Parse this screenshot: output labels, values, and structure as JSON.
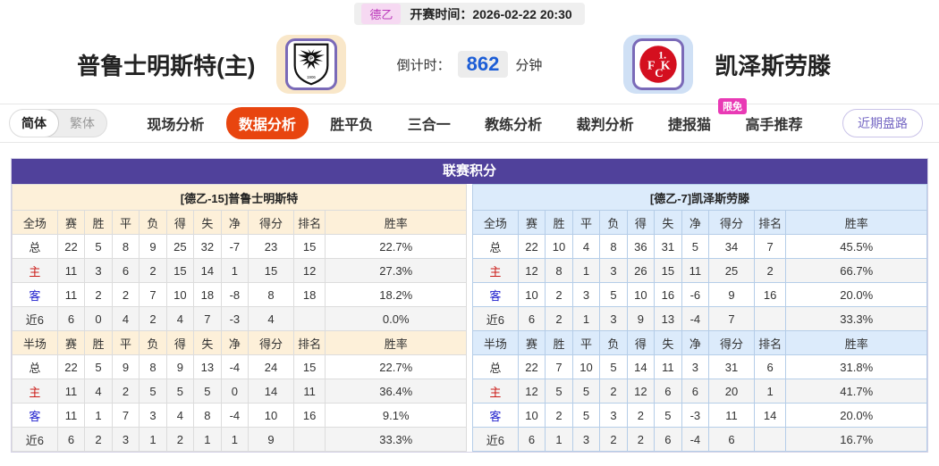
{
  "top_bar": {
    "league": "德乙",
    "kickoff_label": "开赛时间：",
    "kickoff_time": "2026-02-22 20:30"
  },
  "header": {
    "home_team": "普鲁士明斯特(主)",
    "away_team": "凯泽斯劳滕",
    "home_logo": "preussen-muenster-crest",
    "away_logo": "kaiserslautern-fck-crest",
    "countdown_label": "倒计时：",
    "countdown_value": "862",
    "countdown_unit": "分钟"
  },
  "tabs": {
    "lang_simplified": "简体",
    "lang_traditional": "繁体",
    "items": [
      "现场分析",
      "数据分析",
      "胜平负",
      "三合一",
      "教练分析",
      "裁判分析",
      "捷报猫",
      "高手推荐"
    ],
    "active": "数据分析",
    "badge_on": "捷报猫",
    "badge_label": "限免",
    "right_button": "近期盘路"
  },
  "league_table": {
    "title": "联赛积分",
    "columns_full": [
      "全场",
      "赛",
      "胜",
      "平",
      "负",
      "得",
      "失",
      "净",
      "得分",
      "排名",
      "胜率"
    ],
    "columns_half": [
      "半场",
      "赛",
      "胜",
      "平",
      "负",
      "得",
      "失",
      "净",
      "得分",
      "排名",
      "胜率"
    ],
    "home": {
      "subtitle": "[德乙-15]普鲁士明斯特",
      "full": [
        [
          "总",
          "22",
          "5",
          "8",
          "9",
          "25",
          "32",
          "-7",
          "23",
          "15",
          "22.7%"
        ],
        [
          "主",
          "11",
          "3",
          "6",
          "2",
          "15",
          "14",
          "1",
          "15",
          "12",
          "27.3%"
        ],
        [
          "客",
          "11",
          "2",
          "2",
          "7",
          "10",
          "18",
          "-8",
          "8",
          "18",
          "18.2%"
        ],
        [
          "近6",
          "6",
          "0",
          "4",
          "2",
          "4",
          "7",
          "-3",
          "4",
          "",
          "0.0%"
        ]
      ],
      "half": [
        [
          "总",
          "22",
          "5",
          "9",
          "8",
          "9",
          "13",
          "-4",
          "24",
          "15",
          "22.7%"
        ],
        [
          "主",
          "11",
          "4",
          "2",
          "5",
          "5",
          "5",
          "0",
          "14",
          "11",
          "36.4%"
        ],
        [
          "客",
          "11",
          "1",
          "7",
          "3",
          "4",
          "8",
          "-4",
          "10",
          "16",
          "9.1%"
        ],
        [
          "近6",
          "6",
          "2",
          "3",
          "1",
          "2",
          "1",
          "1",
          "9",
          "",
          "33.3%"
        ]
      ]
    },
    "away": {
      "subtitle": "[德乙-7]凯泽斯劳滕",
      "full": [
        [
          "总",
          "22",
          "10",
          "4",
          "8",
          "36",
          "31",
          "5",
          "34",
          "7",
          "45.5%"
        ],
        [
          "主",
          "12",
          "8",
          "1",
          "3",
          "26",
          "15",
          "11",
          "25",
          "2",
          "66.7%"
        ],
        [
          "客",
          "10",
          "2",
          "3",
          "5",
          "10",
          "16",
          "-6",
          "9",
          "16",
          "20.0%"
        ],
        [
          "近6",
          "6",
          "2",
          "1",
          "3",
          "9",
          "13",
          "-4",
          "7",
          "",
          "33.3%"
        ]
      ],
      "half": [
        [
          "总",
          "22",
          "7",
          "10",
          "5",
          "14",
          "11",
          "3",
          "31",
          "6",
          "31.8%"
        ],
        [
          "主",
          "12",
          "5",
          "5",
          "2",
          "12",
          "6",
          "6",
          "20",
          "1",
          "41.7%"
        ],
        [
          "客",
          "10",
          "2",
          "5",
          "3",
          "2",
          "5",
          "-3",
          "11",
          "14",
          "20.0%"
        ],
        [
          "近6",
          "6",
          "1",
          "3",
          "2",
          "2",
          "6",
          "-4",
          "6",
          "",
          "16.7%"
        ]
      ]
    }
  },
  "colors": {
    "table_title_purple": "#50419b",
    "active_tab_orange": "#e8450f",
    "limited_badge_pink": "#e93ab5",
    "league_badge_bg": "#f6d9f2",
    "league_badge_text": "#bb39bb",
    "countdown_blue": "#1c5dd6",
    "home_header_bg": "#fdf0d9",
    "away_header_bg": "#dcebfb",
    "home_label_red": "#cb1b17",
    "away_label_blue": "#1f1fce",
    "recent_button_purple": "#7668c4",
    "home_logo_glow": "#f9e7c9",
    "away_logo_glow": "#cfe0f5",
    "logo_border_purple": "#7a6ab8"
  }
}
